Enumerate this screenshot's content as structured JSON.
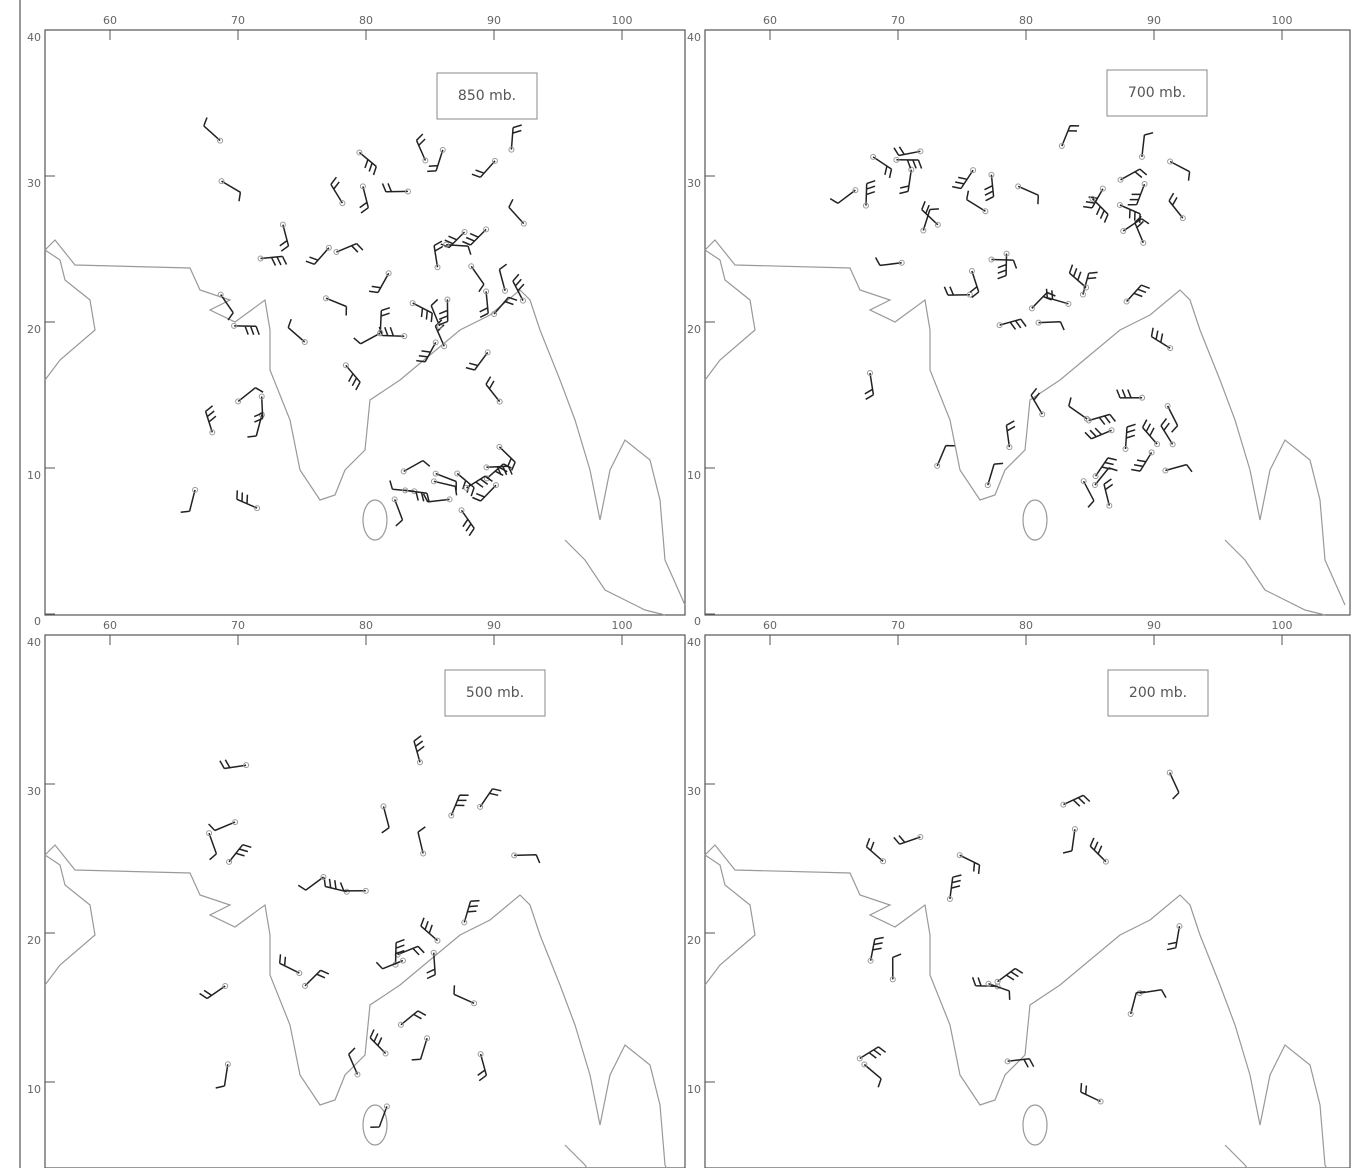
{
  "panels": [
    {
      "label": "850 mb.",
      "lon_ticks": [
        60,
        70,
        80,
        90,
        100
      ],
      "lat_ticks": [
        0,
        10,
        20,
        30,
        40
      ]
    },
    {
      "label": "700 mb.",
      "lon_ticks": [
        60,
        70,
        80,
        90,
        100
      ],
      "lat_ticks": [
        0,
        10,
        20,
        30,
        40
      ]
    },
    {
      "label": "500 mb.",
      "lon_ticks": [
        60,
        70,
        80,
        90,
        100
      ],
      "lat_ticks": [
        10,
        20,
        30,
        40
      ]
    },
    {
      "label": "200 mb.",
      "lon_ticks": [
        60,
        70,
        80,
        90,
        100
      ],
      "lat_ticks": [
        10,
        20,
        30,
        40
      ]
    }
  ]
}
